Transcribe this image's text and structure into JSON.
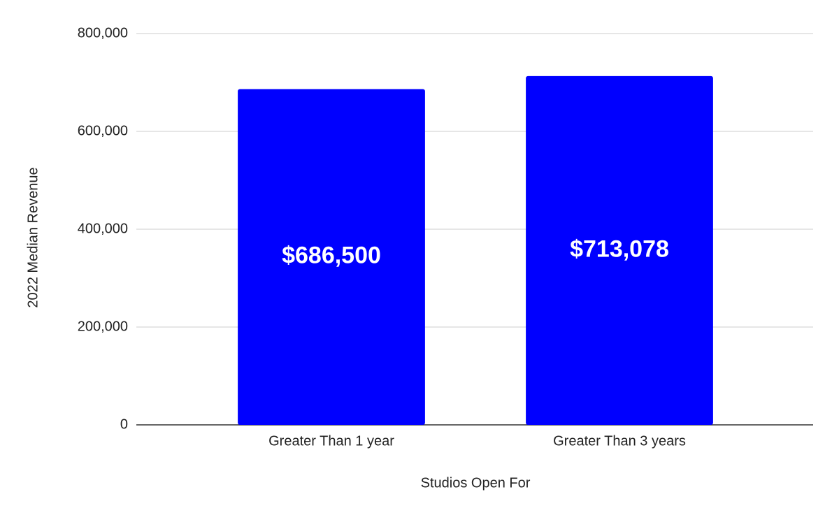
{
  "chart_data": {
    "type": "bar",
    "x_label": "Studios Open For",
    "y_label": "2022 Median Revenue",
    "categories": [
      "Greater Than 1 year",
      "Greater Than 3 years"
    ],
    "values": [
      686500,
      713078
    ],
    "value_labels": [
      "$686,500",
      "$713,078"
    ],
    "color": "#0000ff",
    "ylim": [
      0,
      800000
    ],
    "yticks": [
      0,
      {
        "value": 200000,
        "label": "200,000"
      },
      {
        "value": 400000,
        "label": "400,000"
      },
      {
        "value": 600000,
        "label": "600,000"
      },
      {
        "value": 800000,
        "label": "800,000"
      }
    ],
    "grid": true
  }
}
